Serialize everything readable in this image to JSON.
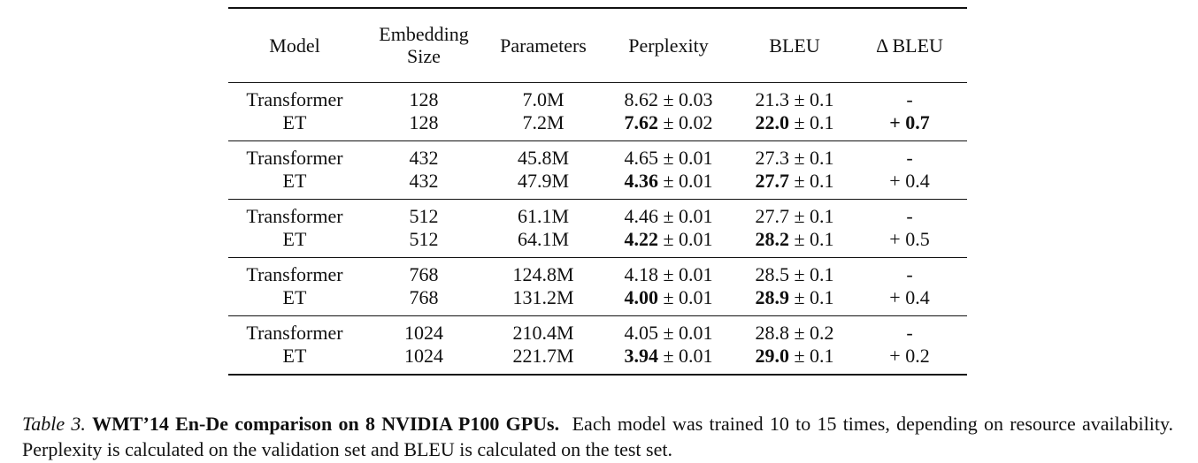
{
  "table": {
    "headers": {
      "model": "Model",
      "embedding_line1": "Embedding",
      "embedding_line2": "Size",
      "parameters": "Parameters",
      "perplexity": "Perplexity",
      "bleu": "BLEU",
      "delta_bleu": "Δ BLEU"
    },
    "pm": "±",
    "groups": [
      {
        "rows": [
          {
            "model": "Transformer",
            "embedding": "128",
            "parameters": "7.0M",
            "ppl": "8.62",
            "ppl_err": "0.03",
            "ppl_bold": false,
            "bleu": "21.3",
            "bleu_err": "0.1",
            "bleu_bold": false,
            "delta": "-",
            "delta_bold": false
          },
          {
            "model": "ET",
            "embedding": "128",
            "parameters": "7.2M",
            "ppl": "7.62",
            "ppl_err": "0.02",
            "ppl_bold": true,
            "bleu": "22.0",
            "bleu_err": "0.1",
            "bleu_bold": true,
            "delta": "+ 0.7",
            "delta_bold": true
          }
        ]
      },
      {
        "rows": [
          {
            "model": "Transformer",
            "embedding": "432",
            "parameters": "45.8M",
            "ppl": "4.65",
            "ppl_err": "0.01",
            "ppl_bold": false,
            "bleu": "27.3",
            "bleu_err": "0.1",
            "bleu_bold": false,
            "delta": "-",
            "delta_bold": false
          },
          {
            "model": "ET",
            "embedding": "432",
            "parameters": "47.9M",
            "ppl": "4.36",
            "ppl_err": "0.01",
            "ppl_bold": true,
            "bleu": "27.7",
            "bleu_err": "0.1",
            "bleu_bold": true,
            "delta": "+ 0.4",
            "delta_bold": false
          }
        ]
      },
      {
        "rows": [
          {
            "model": "Transformer",
            "embedding": "512",
            "parameters": "61.1M",
            "ppl": "4.46",
            "ppl_err": "0.01",
            "ppl_bold": false,
            "bleu": "27.7",
            "bleu_err": "0.1",
            "bleu_bold": false,
            "delta": "-",
            "delta_bold": false
          },
          {
            "model": "ET",
            "embedding": "512",
            "parameters": "64.1M",
            "ppl": "4.22",
            "ppl_err": "0.01",
            "ppl_bold": true,
            "bleu": "28.2",
            "bleu_err": "0.1",
            "bleu_bold": true,
            "delta": "+ 0.5",
            "delta_bold": false
          }
        ]
      },
      {
        "rows": [
          {
            "model": "Transformer",
            "embedding": "768",
            "parameters": "124.8M",
            "ppl": "4.18",
            "ppl_err": "0.01",
            "ppl_bold": false,
            "bleu": "28.5",
            "bleu_err": "0.1",
            "bleu_bold": false,
            "delta": "-",
            "delta_bold": false
          },
          {
            "model": "ET",
            "embedding": "768",
            "parameters": "131.2M",
            "ppl": "4.00",
            "ppl_err": "0.01",
            "ppl_bold": true,
            "bleu": "28.9",
            "bleu_err": "0.1",
            "bleu_bold": true,
            "delta": "+ 0.4",
            "delta_bold": false
          }
        ]
      },
      {
        "rows": [
          {
            "model": "Transformer",
            "embedding": "1024",
            "parameters": "210.4M",
            "ppl": "4.05",
            "ppl_err": "0.01",
            "ppl_bold": false,
            "bleu": "28.8",
            "bleu_err": "0.2",
            "bleu_bold": false,
            "delta": "-",
            "delta_bold": false
          },
          {
            "model": "ET",
            "embedding": "1024",
            "parameters": "221.7M",
            "ppl": "3.94",
            "ppl_err": "0.01",
            "ppl_bold": true,
            "bleu": "29.0",
            "bleu_err": "0.1",
            "bleu_bold": true,
            "delta": "+ 0.2",
            "delta_bold": false
          }
        ]
      }
    ]
  },
  "caption": {
    "label": "Table 3.",
    "title": "WMT’14 En-De comparison on 8 NVIDIA P100 GPUs.",
    "text": "Each model was trained 10 to 15 times, depending on resource availability. Perplexity is calculated on the validation set and BLEU is calculated on the test set."
  }
}
